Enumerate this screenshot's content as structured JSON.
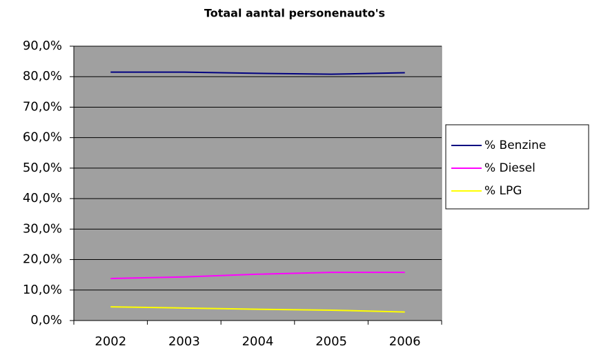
{
  "chart_data": {
    "type": "line",
    "title": "Totaal aantal personenauto's",
    "categories": [
      "2002",
      "2003",
      "2004",
      "2005",
      "2006"
    ],
    "series": [
      {
        "name": "% Benzine",
        "color": "#000080",
        "values": [
          81.5,
          81.5,
          81.1,
          80.8,
          81.3
        ]
      },
      {
        "name": "% Diesel",
        "color": "#ff00ff",
        "values": [
          13.8,
          14.3,
          15.2,
          15.8,
          15.8
        ]
      },
      {
        "name": "% LPG",
        "color": "#ffff00",
        "values": [
          4.5,
          4.1,
          3.7,
          3.4,
          2.8
        ]
      }
    ],
    "ylim": [
      0,
      90
    ],
    "yticks": [
      {
        "value": 0,
        "label": "0,0%"
      },
      {
        "value": 10,
        "label": "10,0%"
      },
      {
        "value": 20,
        "label": "20,0%"
      },
      {
        "value": 30,
        "label": "30,0%"
      },
      {
        "value": 40,
        "label": "40,0%"
      },
      {
        "value": 50,
        "label": "50,0%"
      },
      {
        "value": 60,
        "label": "60,0%"
      },
      {
        "value": 70,
        "label": "70,0%"
      },
      {
        "value": 80,
        "label": "80,0%"
      },
      {
        "value": 90,
        "label": "90,0%"
      }
    ],
    "grid": true,
    "legend": "right",
    "plot_background": "#a0a0a0"
  }
}
